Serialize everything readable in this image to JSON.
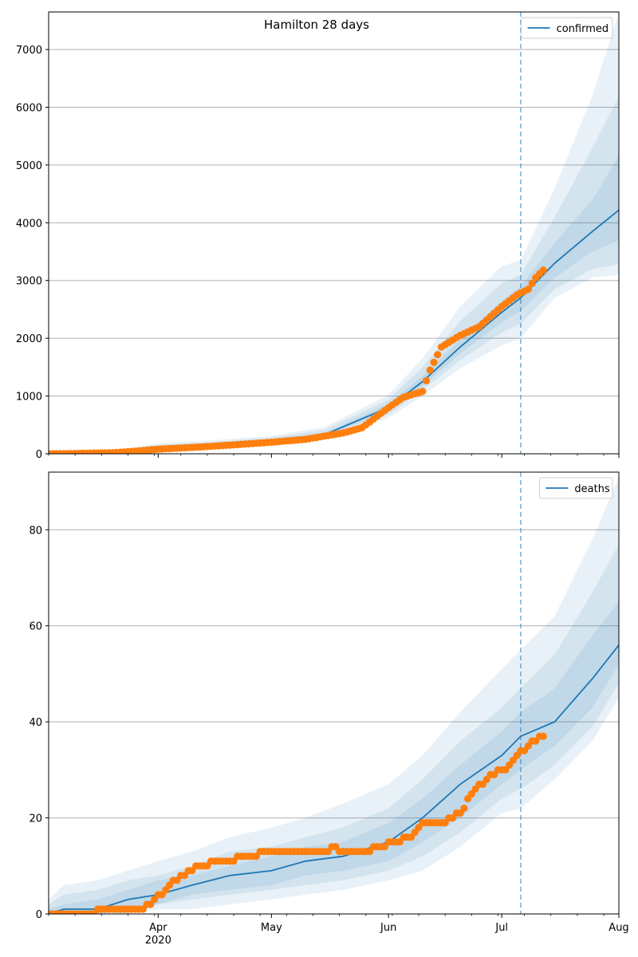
{
  "title": "Hamilton 28 days",
  "colors": {
    "model_line": "#1f77b4",
    "band": "#1f77b4",
    "observed": "#ff7f0e",
    "cutoff": "#1f77b4",
    "grid": "#b0b0b0"
  },
  "chart_data": [
    {
      "type": "line",
      "legend": "confirmed",
      "legend_position": "top-right",
      "grid": "horizontal",
      "xlim": [
        "2020-03-03",
        "2020-08-01"
      ],
      "ylim": [
        0,
        7650
      ],
      "yticks": [
        0,
        1000,
        2000,
        3000,
        4000,
        5000,
        6000,
        7000
      ],
      "cutoff_date": "2020-07-06",
      "model": {
        "x": [
          "2020-03-03",
          "2020-03-20",
          "2020-04-01",
          "2020-04-15",
          "2020-05-01",
          "2020-05-15",
          "2020-06-01",
          "2020-06-10",
          "2020-06-20",
          "2020-07-01",
          "2020-07-06",
          "2020-07-15",
          "2020-07-25",
          "2020-08-01"
        ],
        "y": [
          0,
          15,
          110,
          160,
          230,
          330,
          800,
          1250,
          1850,
          2450,
          2700,
          3300,
          3850,
          4220
        ],
        "bands": [
          {
            "lower": [
              0,
              0,
              60,
              110,
              170,
              250,
              620,
              1000,
              1480,
              1880,
              2000,
              2700,
              3050,
              3100
            ],
            "upper": [
              0,
              40,
              180,
              230,
              310,
              460,
              1020,
              1650,
              2550,
              3250,
              3350,
              4600,
              6200,
              7650
            ]
          },
          {
            "lower": [
              0,
              5,
              80,
              130,
              195,
              280,
              680,
              1100,
              1620,
              2100,
              2250,
              2850,
              3200,
              3280
            ],
            "upper": [
              0,
              30,
              150,
              200,
              280,
              410,
              940,
              1500,
              2300,
              2950,
              3100,
              4100,
              5300,
              6200
            ]
          },
          {
            "lower": [
              0,
              10,
              95,
              145,
              215,
              305,
              740,
              1170,
              1740,
              2280,
              2470,
              3050,
              3500,
              3700
            ],
            "upper": [
              0,
              22,
              125,
              175,
              250,
              360,
              860,
              1350,
              1980,
              2650,
              2900,
              3650,
              4400,
              5150
            ]
          }
        ]
      },
      "observed": {
        "x": [
          "2020-03-03",
          "2020-03-10",
          "2020-03-20",
          "2020-03-25",
          "2020-04-01",
          "2020-04-10",
          "2020-04-20",
          "2020-05-01",
          "2020-05-10",
          "2020-05-20",
          "2020-05-25",
          "2020-06-01",
          "2020-06-05",
          "2020-06-10",
          "2020-06-12",
          "2020-06-15",
          "2020-06-20",
          "2020-06-25",
          "2020-07-01",
          "2020-07-05",
          "2020-07-08",
          "2020-07-10",
          "2020-07-12"
        ],
        "y": [
          0,
          5,
          20,
          40,
          80,
          110,
          150,
          200,
          250,
          360,
          450,
          800,
          980,
          1080,
          1450,
          1850,
          2050,
          2200,
          2550,
          2750,
          2850,
          3050,
          3180
        ]
      }
    },
    {
      "type": "line",
      "legend": "deaths",
      "legend_position": "top-right",
      "grid": "horizontal",
      "xlim": [
        "2020-03-03",
        "2020-08-01"
      ],
      "ylim": [
        0,
        92
      ],
      "yticks": [
        0,
        20,
        40,
        60,
        80
      ],
      "xticks": [
        "Apr",
        "May",
        "Jun",
        "Jul",
        "Aug"
      ],
      "xtick_dates": [
        "2020-04-01",
        "2020-05-01",
        "2020-06-01",
        "2020-07-01",
        "2020-08-01"
      ],
      "xlabel_year": "2020",
      "cutoff_date": "2020-07-06",
      "model": {
        "x": [
          "2020-03-03",
          "2020-03-07",
          "2020-03-16",
          "2020-03-24",
          "2020-04-01",
          "2020-04-10",
          "2020-04-20",
          "2020-05-01",
          "2020-05-10",
          "2020-05-20",
          "2020-06-01",
          "2020-06-10",
          "2020-06-20",
          "2020-07-01",
          "2020-07-06",
          "2020-07-15",
          "2020-07-25",
          "2020-08-01"
        ],
        "y": [
          0,
          1,
          1,
          3,
          4,
          6,
          8,
          9,
          11,
          12,
          15,
          20,
          27,
          33,
          37,
          40,
          49,
          56
        ],
        "bands": [
          {
            "lower": [
              0,
              0,
              0,
              0,
              1,
              1,
              2,
              3,
              4,
              5,
              7,
              9,
              14,
              21,
              22,
              28,
              36,
              45
            ],
            "upper": [
              3,
              6,
              7,
              9,
              11,
              13,
              16,
              18,
              20,
              23,
              27,
              33,
              42,
              51,
              55,
              62,
              78,
              91
            ]
          },
          {
            "lower": [
              0,
              0,
              0,
              1,
              2,
              3,
              4,
              5,
              6,
              7,
              9,
              12,
              17,
              24,
              26,
              31,
              39,
              48
            ],
            "upper": [
              2,
              4,
              5,
              7,
              8,
              10,
              13,
              14,
              16,
              18,
              22,
              28,
              36,
              43,
              47,
              54,
              67,
              77
            ]
          },
          {
            "lower": [
              0,
              0,
              0,
              1,
              2,
              4,
              5,
              6,
              8,
              9,
              11,
              15,
              20,
              27,
              30,
              35,
              43,
              52
            ],
            "upper": [
              1,
              2,
              3,
              5,
              7,
              8,
              10,
              12,
              14,
              15,
              19,
              24,
              31,
              38,
              42,
              47,
              58,
              65
            ]
          }
        ]
      },
      "observed": {
        "x": [
          "2020-03-03",
          "2020-03-28",
          "2020-03-31",
          "2020-04-03",
          "2020-04-07",
          "2020-04-12",
          "2020-04-18",
          "2020-04-25",
          "2020-05-01",
          "2020-05-10",
          "2020-05-16",
          "2020-05-17",
          "2020-05-20",
          "2020-05-26",
          "2020-05-30",
          "2020-06-03",
          "2020-06-07",
          "2020-06-10",
          "2020-06-15",
          "2020-06-20",
          "2020-06-23",
          "2020-06-28",
          "2020-07-02",
          "2020-07-05",
          "2020-07-08",
          "2020-07-12"
        ],
        "y": [
          0,
          1,
          3,
          5,
          8,
          10,
          11,
          12,
          13,
          13,
          13,
          14,
          13,
          13,
          14,
          15,
          16,
          19,
          19,
          21,
          25,
          29,
          30,
          33,
          35,
          37
        ]
      }
    }
  ]
}
